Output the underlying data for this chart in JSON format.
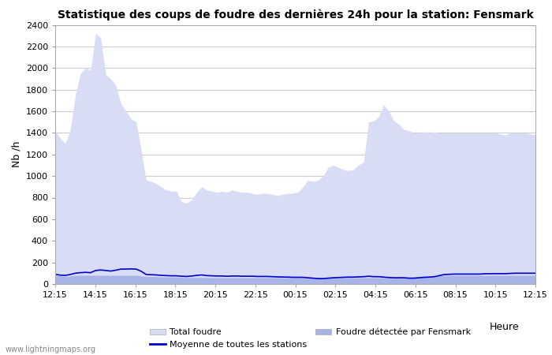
{
  "title": "Statistique des coups de foudre des dernières 24h pour la station: Fensmark",
  "xlabel": "Heure",
  "ylabel": "Nb /h",
  "xlabels": [
    "12:15",
    "14:15",
    "16:15",
    "18:15",
    "20:15",
    "22:15",
    "00:15",
    "02:15",
    "04:15",
    "06:15",
    "08:15",
    "10:15",
    "12:15"
  ],
  "yticks": [
    0,
    200,
    400,
    600,
    800,
    1000,
    1200,
    1400,
    1600,
    1800,
    2000,
    2200,
    2400
  ],
  "ylim": [
    0,
    2400
  ],
  "bg_color": "#ffffff",
  "plot_bg_color": "#ffffff",
  "grid_color": "#cccccc",
  "total_foudre_color": "#d8dcf5",
  "fensmark_color": "#a8b4e8",
  "moyenne_color": "#0000cc",
  "watermark": "www.lightningmaps.org",
  "total_foudre": [
    1420,
    1350,
    1300,
    1430,
    1750,
    1950,
    2000,
    1980,
    2320,
    2280,
    1940,
    1900,
    1840,
    1670,
    1600,
    1530,
    1500,
    1250,
    960,
    950,
    930,
    900,
    870,
    860,
    860,
    760,
    750,
    780,
    850,
    900,
    870,
    860,
    850,
    860,
    850,
    870,
    860,
    850,
    850,
    840,
    830,
    840,
    840,
    830,
    820,
    830,
    840,
    840,
    850,
    900,
    960,
    950,
    960,
    1000,
    1080,
    1100,
    1080,
    1060,
    1050,
    1060,
    1100,
    1130,
    1500,
    1510,
    1550,
    1660,
    1600,
    1510,
    1480,
    1430,
    1420,
    1400,
    1400,
    1410,
    1400,
    1410,
    1400,
    1400,
    1400,
    1400,
    1400,
    1400,
    1400,
    1400,
    1400,
    1400,
    1400,
    1400,
    1390,
    1380,
    1400,
    1400,
    1400,
    1400,
    1390,
    1380
  ],
  "fensmark": [
    80,
    75,
    70,
    75,
    80,
    80,
    80,
    80,
    80,
    80,
    80,
    80,
    80,
    80,
    80,
    80,
    80,
    75,
    70,
    70,
    68,
    65,
    65,
    65,
    65,
    62,
    60,
    60,
    60,
    60,
    60,
    58,
    58,
    58,
    58,
    58,
    58,
    58,
    58,
    58,
    58,
    58,
    58,
    58,
    58,
    58,
    58,
    58,
    58,
    58,
    58,
    58,
    58,
    58,
    58,
    58,
    58,
    58,
    58,
    58,
    58,
    58,
    58,
    58,
    58,
    58,
    58,
    58,
    58,
    60,
    62,
    65,
    68,
    70,
    72,
    75,
    78,
    80,
    80,
    80,
    80,
    80,
    80,
    80,
    80,
    80,
    80,
    80,
    80,
    80,
    80,
    80,
    80,
    80,
    80,
    80
  ],
  "moyenne": [
    90,
    82,
    80,
    88,
    100,
    105,
    108,
    105,
    125,
    130,
    125,
    120,
    128,
    138,
    138,
    140,
    138,
    118,
    88,
    86,
    84,
    80,
    78,
    76,
    76,
    72,
    70,
    74,
    80,
    84,
    78,
    76,
    74,
    74,
    72,
    74,
    74,
    72,
    72,
    72,
    70,
    70,
    70,
    68,
    66,
    65,
    64,
    62,
    62,
    62,
    58,
    54,
    50,
    50,
    54,
    58,
    60,
    62,
    64,
    64,
    66,
    68,
    72,
    68,
    68,
    64,
    60,
    58,
    58,
    58,
    54,
    54,
    58,
    62,
    64,
    68,
    78,
    88,
    90,
    92,
    92,
    92,
    92,
    92,
    92,
    95,
    95,
    96,
    96,
    96,
    98,
    100,
    100,
    100,
    100,
    100
  ]
}
